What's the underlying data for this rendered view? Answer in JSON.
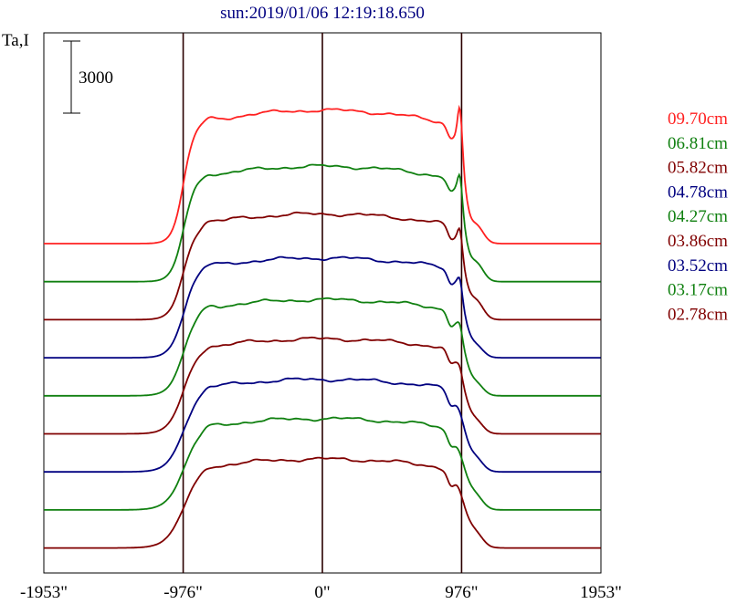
{
  "chart_data": {
    "type": "line",
    "title": "sun:2019/01/06 12:19:18.650",
    "ylabel": "Ta,I",
    "scale_bar_label": "3000",
    "xlim": [
      -1953,
      1953
    ],
    "x_ticks": [
      {
        "value": -1953,
        "label": "-1953\""
      },
      {
        "value": -976,
        "label": "-976\""
      },
      {
        "value": 0,
        "label": "0\""
      },
      {
        "value": 976,
        "label": "976\""
      },
      {
        "value": 1953,
        "label": "1953\""
      }
    ],
    "vertical_lines": [
      -976,
      0,
      976
    ],
    "grid": false,
    "legend_position": "right",
    "series": [
      {
        "name": "09.70cm",
        "color": "#ff2020",
        "baseline": 0,
        "disk_level": 5550,
        "limb_peak": 6700
      },
      {
        "name": "06.81cm",
        "color": "#108010",
        "baseline": 0,
        "disk_level": 4800,
        "limb_peak": 5300
      },
      {
        "name": "05.82cm",
        "color": "#800000",
        "baseline": 0,
        "disk_level": 4400,
        "limb_peak": 4700
      },
      {
        "name": "04.78cm",
        "color": "#000080",
        "baseline": 0,
        "disk_level": 4150,
        "limb_peak": 4250
      },
      {
        "name": "04.27cm",
        "color": "#108010",
        "baseline": 0,
        "disk_level": 4000,
        "limb_peak": 3900
      },
      {
        "name": "03.86cm",
        "color": "#800000",
        "baseline": 0,
        "disk_level": 3950,
        "limb_peak": 3750
      },
      {
        "name": "03.52cm",
        "color": "#000080",
        "baseline": 0,
        "disk_level": 3850,
        "limb_peak": 3500
      },
      {
        "name": "03.17cm",
        "color": "#108010",
        "baseline": 0,
        "disk_level": 3800,
        "limb_peak": 3300
      },
      {
        "name": "02.78cm",
        "color": "#800000",
        "baseline": 0,
        "disk_level": 3700,
        "limb_peak": 3000
      }
    ]
  }
}
